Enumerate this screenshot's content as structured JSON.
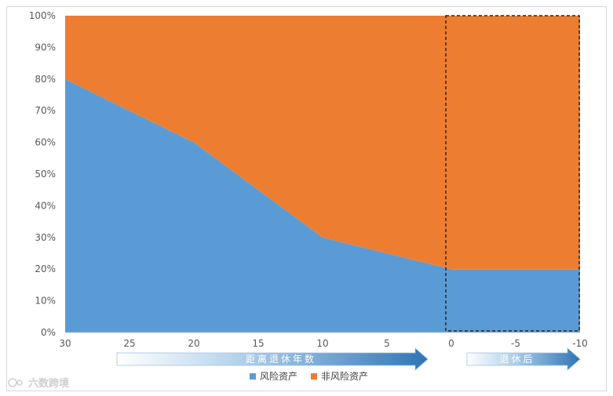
{
  "chart_data": {
    "type": "area",
    "stacked": true,
    "percent": true,
    "x": [
      30,
      20,
      10,
      0,
      -10
    ],
    "x_ticks": [
      "30",
      "25",
      "20",
      "15",
      "10",
      "5",
      "0",
      "-5",
      "-10"
    ],
    "y_ticks": [
      "0%",
      "10%",
      "20%",
      "30%",
      "40%",
      "50%",
      "60%",
      "70%",
      "80%",
      "90%",
      "100%"
    ],
    "xlim": [
      30,
      -10
    ],
    "ylim": [
      0,
      100
    ],
    "series": [
      {
        "name": "风险资产",
        "values": [
          80,
          60,
          30,
          20,
          20
        ],
        "color": "#5b9bd5"
      },
      {
        "name": "非风险资产",
        "values": [
          20,
          40,
          70,
          80,
          80
        ],
        "color": "#ed7d31"
      }
    ],
    "highlight_region": {
      "x_from": 0,
      "x_to": -10,
      "style": "dashed"
    },
    "annotations": [
      {
        "label": "距离退休年数",
        "x_from": 30,
        "x_to": 0,
        "color": "#2e75b6"
      },
      {
        "label": "退休后",
        "x_from": 0,
        "x_to": -10,
        "color": "#2e75b6"
      }
    ],
    "legend_position": "bottom",
    "grid": false
  },
  "watermark": {
    "text": "六数跨境"
  }
}
